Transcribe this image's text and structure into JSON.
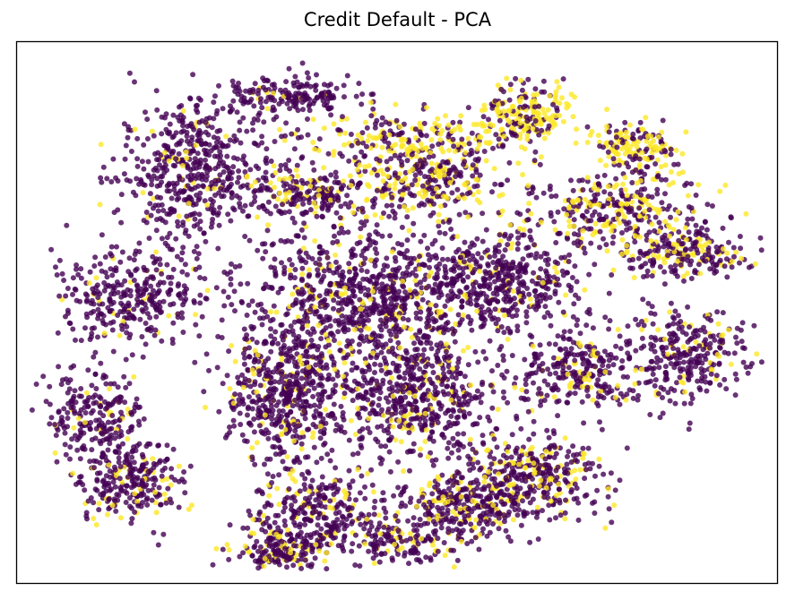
{
  "chart_data": {
    "type": "scatter",
    "title": "Credit Default - PCA",
    "xlabel": "",
    "ylabel": "",
    "axes_ticks": "none",
    "grid": false,
    "legend": "none",
    "series": [
      {
        "class": 0,
        "color": "#440154",
        "point_alpha": 0.8,
        "approx_count": 9000
      },
      {
        "class": 1,
        "color": "#fde725",
        "point_alpha": 0.8,
        "approx_count": 2200
      }
    ],
    "clusters": [
      {
        "cx": 0.36,
        "cy": 0.9,
        "rx": 0.08,
        "ry": 0.035,
        "n": 170,
        "yellow": 0.05
      },
      {
        "cx": 0.23,
        "cy": 0.76,
        "rx": 0.09,
        "ry": 0.12,
        "n": 520,
        "yellow": 0.06
      },
      {
        "cx": 0.15,
        "cy": 0.53,
        "rx": 0.1,
        "ry": 0.08,
        "n": 330,
        "yellow": 0.07
      },
      {
        "cx": 0.1,
        "cy": 0.31,
        "rx": 0.06,
        "ry": 0.07,
        "n": 220,
        "yellow": 0.08
      },
      {
        "cx": 0.15,
        "cy": 0.19,
        "rx": 0.06,
        "ry": 0.07,
        "n": 260,
        "yellow": 0.18
      },
      {
        "cx": 0.39,
        "cy": 0.72,
        "rx": 0.08,
        "ry": 0.045,
        "n": 210,
        "yellow": 0.35
      },
      {
        "cx": 0.52,
        "cy": 0.82,
        "rx": 0.13,
        "ry": 0.045,
        "n": 250,
        "yellow": 0.55
      },
      {
        "cx": 0.54,
        "cy": 0.74,
        "rx": 0.09,
        "ry": 0.055,
        "n": 260,
        "yellow": 0.35
      },
      {
        "cx": 0.67,
        "cy": 0.87,
        "rx": 0.05,
        "ry": 0.06,
        "n": 190,
        "yellow": 0.55
      },
      {
        "cx": 0.81,
        "cy": 0.8,
        "rx": 0.05,
        "ry": 0.045,
        "n": 160,
        "yellow": 0.55
      },
      {
        "cx": 0.78,
        "cy": 0.69,
        "rx": 0.11,
        "ry": 0.06,
        "n": 320,
        "yellow": 0.35
      },
      {
        "cx": 0.87,
        "cy": 0.61,
        "rx": 0.08,
        "ry": 0.045,
        "n": 230,
        "yellow": 0.3
      },
      {
        "cx": 0.88,
        "cy": 0.42,
        "rx": 0.07,
        "ry": 0.08,
        "n": 290,
        "yellow": 0.12
      },
      {
        "cx": 0.46,
        "cy": 0.52,
        "rx": 0.14,
        "ry": 0.13,
        "n": 900,
        "yellow": 0.12
      },
      {
        "cx": 0.64,
        "cy": 0.56,
        "rx": 0.09,
        "ry": 0.08,
        "n": 420,
        "yellow": 0.1
      },
      {
        "cx": 0.74,
        "cy": 0.4,
        "rx": 0.07,
        "ry": 0.07,
        "n": 260,
        "yellow": 0.18
      },
      {
        "cx": 0.35,
        "cy": 0.35,
        "rx": 0.07,
        "ry": 0.12,
        "n": 520,
        "yellow": 0.1
      },
      {
        "cx": 0.53,
        "cy": 0.34,
        "rx": 0.1,
        "ry": 0.1,
        "n": 560,
        "yellow": 0.14
      },
      {
        "cx": 0.68,
        "cy": 0.2,
        "rx": 0.08,
        "ry": 0.07,
        "n": 340,
        "yellow": 0.22
      },
      {
        "cx": 0.4,
        "cy": 0.13,
        "rx": 0.08,
        "ry": 0.06,
        "n": 300,
        "yellow": 0.2
      },
      {
        "cx": 0.59,
        "cy": 0.14,
        "rx": 0.08,
        "ry": 0.06,
        "n": 330,
        "yellow": 0.22
      },
      {
        "cx": 0.35,
        "cy": 0.06,
        "rx": 0.06,
        "ry": 0.035,
        "n": 170,
        "yellow": 0.25
      },
      {
        "cx": 0.5,
        "cy": 0.07,
        "rx": 0.05,
        "ry": 0.04,
        "n": 130,
        "yellow": 0.22
      }
    ]
  }
}
